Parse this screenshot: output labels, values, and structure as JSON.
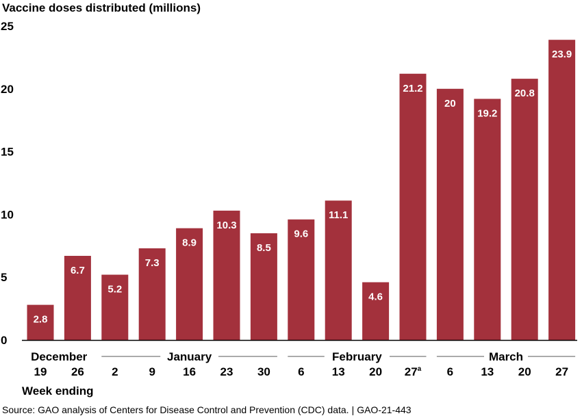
{
  "chart_data": {
    "type": "bar",
    "ylabel": "Vaccine doses distributed (millions)",
    "xlabel": "Week ending",
    "ylim": [
      0,
      25
    ],
    "yticks": [
      0,
      5,
      10,
      15,
      20,
      25
    ],
    "grid": false,
    "bar_color": "#a3313c",
    "categories": [
      "19",
      "26",
      "2",
      "9",
      "16",
      "23",
      "30",
      "6",
      "13",
      "20",
      "27",
      "6",
      "13",
      "20",
      "27"
    ],
    "category_superscripts": [
      "",
      "",
      "",
      "",
      "",
      "",
      "",
      "",
      "",
      "",
      "a",
      "",
      "",
      "",
      ""
    ],
    "values": [
      2.8,
      6.7,
      5.2,
      7.3,
      8.9,
      10.3,
      8.5,
      9.6,
      11.1,
      4.6,
      21.2,
      20,
      19.2,
      20.8,
      23.9
    ],
    "data_labels": [
      "2.8",
      "6.7",
      "5.2",
      "7.3",
      "8.9",
      "10.3",
      "8.5",
      "9.6",
      "11.1",
      "4.6",
      "21.2",
      "20",
      "19.2",
      "20.8",
      "23.9"
    ],
    "month_groups": [
      {
        "label": "December",
        "first": 0,
        "last": 1
      },
      {
        "label": "January",
        "first": 2,
        "last": 6
      },
      {
        "label": "February",
        "first": 7,
        "last": 10
      },
      {
        "label": "March",
        "first": 11,
        "last": 14
      }
    ]
  },
  "footer": {
    "source": "Source: GAO analysis of Centers for Disease Control and Prevention (CDC) data.",
    "separator": "|",
    "report_id": "GAO-21-443"
  }
}
